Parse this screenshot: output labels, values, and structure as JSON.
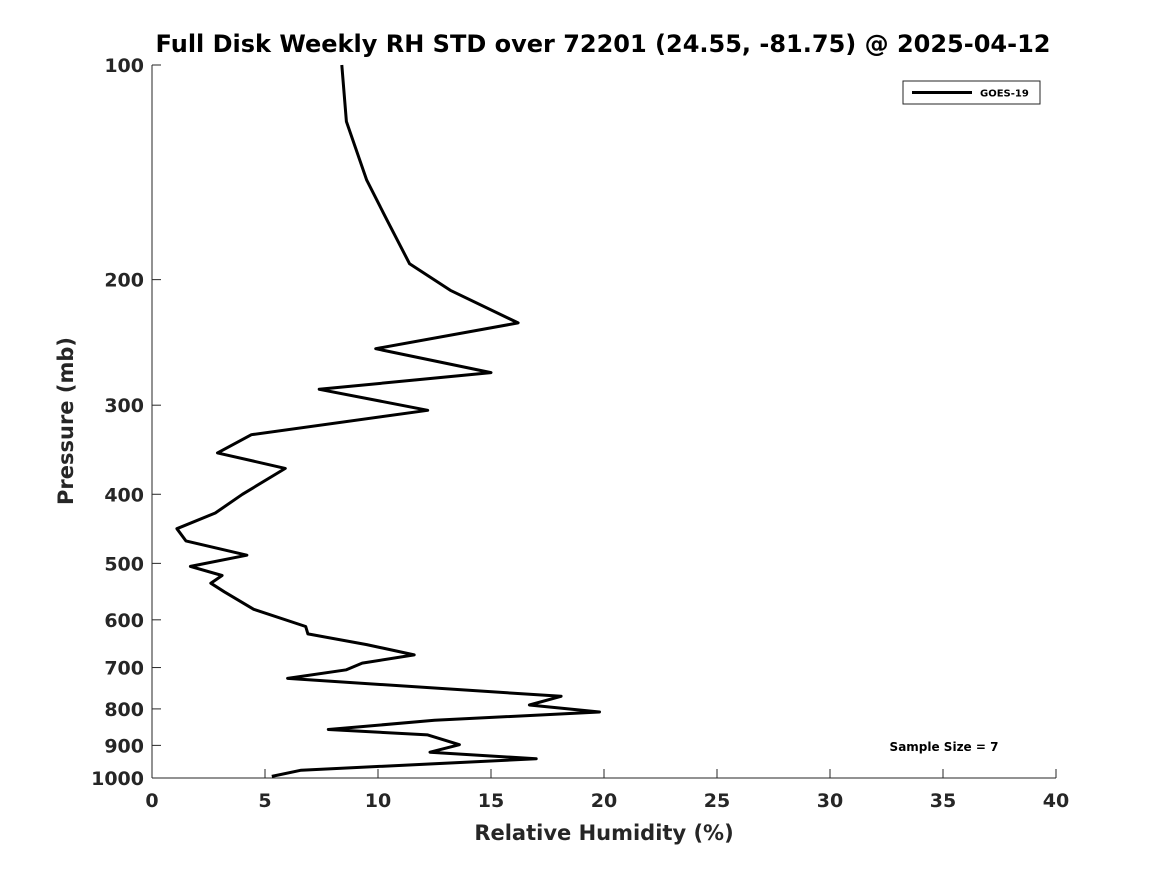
{
  "chart_data": {
    "type": "line",
    "title": "Full Disk Weekly RH STD over 72201 (24.55, -81.75) @ 2025-04-12",
    "xlabel": "Relative Humidity (%)",
    "ylabel": "Pressure (mb)",
    "xlim": [
      0,
      40
    ],
    "ylim": [
      100,
      1000
    ],
    "yscale": "log",
    "y_reversed": true,
    "grid": false,
    "legend_position": "top-right",
    "xticks": [
      0,
      5,
      10,
      15,
      20,
      25,
      30,
      35,
      40
    ],
    "xtick_labels": [
      "0",
      "5",
      "10",
      "15",
      "20",
      "25",
      "30",
      "35",
      "40"
    ],
    "yticks": [
      100,
      200,
      300,
      400,
      500,
      600,
      700,
      800,
      900,
      1000
    ],
    "ytick_labels": [
      "100",
      "200",
      "300",
      "400",
      "500",
      "600",
      "700",
      "800",
      "900",
      "1000"
    ],
    "series": [
      {
        "name": "GOES-19",
        "color": "#000000",
        "x": [
          8.4,
          8.6,
          9.5,
          10.4,
          11.4,
          13.2,
          16.2,
          9.9,
          15.0,
          7.4,
          12.2,
          4.4,
          2.9,
          5.9,
          4.0,
          2.8,
          1.1,
          1.5,
          4.2,
          1.7,
          3.1,
          2.6,
          3.2,
          4.5,
          6.8,
          6.9,
          9.5,
          11.6,
          9.3,
          8.6,
          6.0,
          18.1,
          16.7,
          19.8,
          12.5,
          7.8,
          12.2,
          13.6,
          12.3,
          17.0,
          6.6,
          5.3
        ],
        "y": [
          100,
          120,
          145,
          165,
          190,
          207,
          230,
          250,
          270,
          285,
          305,
          330,
          350,
          368,
          400,
          425,
          447,
          465,
          487,
          505,
          520,
          533,
          548,
          580,
          613,
          628,
          650,
          672,
          690,
          705,
          725,
          768,
          790,
          808,
          830,
          855,
          870,
          898,
          920,
          940,
          975,
          995
        ]
      }
    ],
    "annotation": "Sample Size = 7"
  }
}
